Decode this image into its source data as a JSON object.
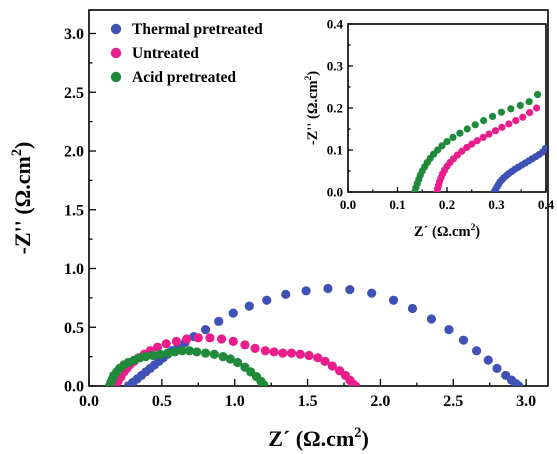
{
  "chart_data": [
    {
      "type": "scatter",
      "role": "main",
      "xlabel": "Z´ (Ω.cm2)",
      "ylabel": "-Z'' (Ω.cm2)",
      "xlim": [
        0.0,
        3.15
      ],
      "ylim": [
        0.0,
        3.2
      ],
      "xticks": [
        "0.0",
        "0.5",
        "1.0",
        "1.5",
        "2.0",
        "2.5",
        "3.0"
      ],
      "yticks": [
        "0.0",
        "0.5",
        "1.0",
        "1.5",
        "2.0",
        "2.5",
        "3.0"
      ],
      "legend_position": "top-left",
      "series": [
        {
          "name": "Thermal pretreated",
          "color": "#3f51b5",
          "x": [
            0.27,
            0.3,
            0.33,
            0.36,
            0.39,
            0.42,
            0.45,
            0.48,
            0.51,
            0.54,
            0.57,
            0.61,
            0.66,
            0.72,
            0.8,
            0.89,
            0.99,
            1.1,
            1.22,
            1.35,
            1.49,
            1.64,
            1.79,
            1.94,
            2.09,
            2.22,
            2.35,
            2.47,
            2.57,
            2.66,
            2.74,
            2.8,
            2.86,
            2.9,
            2.93,
            2.95
          ],
          "y": [
            0.0,
            0.03,
            0.06,
            0.09,
            0.12,
            0.15,
            0.18,
            0.21,
            0.24,
            0.27,
            0.3,
            0.33,
            0.37,
            0.42,
            0.48,
            0.55,
            0.62,
            0.68,
            0.73,
            0.78,
            0.81,
            0.83,
            0.82,
            0.79,
            0.73,
            0.66,
            0.57,
            0.48,
            0.39,
            0.3,
            0.22,
            0.15,
            0.09,
            0.05,
            0.02,
            0.0
          ]
        },
        {
          "name": "Untreated",
          "color": "#e91e8c",
          "x": [
            0.18,
            0.2,
            0.22,
            0.24,
            0.26,
            0.28,
            0.31,
            0.34,
            0.38,
            0.42,
            0.47,
            0.53,
            0.6,
            0.67,
            0.75,
            0.83,
            0.91,
            0.99,
            1.07,
            1.14,
            1.21,
            1.27,
            1.33,
            1.39,
            1.45,
            1.51,
            1.57,
            1.62,
            1.67,
            1.72,
            1.76,
            1.79,
            1.81,
            1.83
          ],
          "y": [
            0.0,
            0.04,
            0.08,
            0.12,
            0.15,
            0.18,
            0.21,
            0.24,
            0.27,
            0.3,
            0.33,
            0.36,
            0.38,
            0.4,
            0.41,
            0.41,
            0.4,
            0.38,
            0.35,
            0.32,
            0.3,
            0.29,
            0.28,
            0.28,
            0.27,
            0.26,
            0.24,
            0.21,
            0.17,
            0.13,
            0.09,
            0.05,
            0.02,
            0.0
          ]
        },
        {
          "name": "Acid pretreated",
          "color": "#1e8a3a",
          "x": [
            0.14,
            0.15,
            0.16,
            0.17,
            0.19,
            0.21,
            0.24,
            0.27,
            0.31,
            0.35,
            0.39,
            0.44,
            0.49,
            0.54,
            0.59,
            0.64,
            0.69,
            0.74,
            0.8,
            0.86,
            0.92,
            0.97,
            1.02,
            1.07,
            1.11,
            1.15,
            1.18,
            1.2
          ],
          "y": [
            0.0,
            0.03,
            0.06,
            0.09,
            0.12,
            0.15,
            0.18,
            0.2,
            0.22,
            0.24,
            0.25,
            0.26,
            0.27,
            0.28,
            0.29,
            0.3,
            0.3,
            0.29,
            0.28,
            0.27,
            0.25,
            0.23,
            0.2,
            0.16,
            0.12,
            0.08,
            0.04,
            0.01
          ]
        }
      ]
    },
    {
      "type": "scatter",
      "role": "inset",
      "xlabel": "Z´ (Ω.cm2)",
      "ylabel": "-Z'' (Ω.cm2)",
      "xlim": [
        0.0,
        0.4
      ],
      "ylim": [
        0.0,
        0.4
      ],
      "xticks": [
        "0.0",
        "0.1",
        "0.2",
        "0.3",
        "0.4"
      ],
      "yticks": [
        "0.0",
        "0.1",
        "0.2",
        "0.3",
        "0.4"
      ],
      "series": [
        {
          "color": "#3f51b5",
          "x": [
            0.295,
            0.298,
            0.301,
            0.304,
            0.307,
            0.311,
            0.315,
            0.32,
            0.325,
            0.331,
            0.337,
            0.344,
            0.351,
            0.358,
            0.365,
            0.372,
            0.379,
            0.386,
            0.393,
            0.399
          ],
          "y": [
            0.0,
            0.006,
            0.012,
            0.018,
            0.024,
            0.029,
            0.034,
            0.039,
            0.044,
            0.049,
            0.054,
            0.059,
            0.064,
            0.069,
            0.074,
            0.079,
            0.084,
            0.089,
            0.095,
            0.104
          ]
        },
        {
          "color": "#e91e8c",
          "x": [
            0.18,
            0.181,
            0.183,
            0.185,
            0.188,
            0.191,
            0.195,
            0.2,
            0.206,
            0.213,
            0.221,
            0.23,
            0.24,
            0.25,
            0.261,
            0.273,
            0.285,
            0.298,
            0.311,
            0.325,
            0.339,
            0.353,
            0.367,
            0.381
          ],
          "y": [
            0.0,
            0.008,
            0.016,
            0.025,
            0.034,
            0.043,
            0.052,
            0.061,
            0.07,
            0.079,
            0.088,
            0.097,
            0.106,
            0.114,
            0.122,
            0.13,
            0.138,
            0.146,
            0.154,
            0.162,
            0.17,
            0.178,
            0.189,
            0.2
          ]
        },
        {
          "color": "#1e8a3a",
          "x": [
            0.135,
            0.137,
            0.14,
            0.143,
            0.146,
            0.15,
            0.155,
            0.16,
            0.166,
            0.173,
            0.181,
            0.19,
            0.2,
            0.212,
            0.226,
            0.241,
            0.257,
            0.274,
            0.292,
            0.31,
            0.329,
            0.348,
            0.366,
            0.383
          ],
          "y": [
            0.0,
            0.01,
            0.02,
            0.03,
            0.04,
            0.05,
            0.06,
            0.07,
            0.08,
            0.09,
            0.1,
            0.11,
            0.12,
            0.13,
            0.14,
            0.15,
            0.16,
            0.17,
            0.18,
            0.19,
            0.198,
            0.206,
            0.215,
            0.232
          ]
        }
      ]
    }
  ]
}
